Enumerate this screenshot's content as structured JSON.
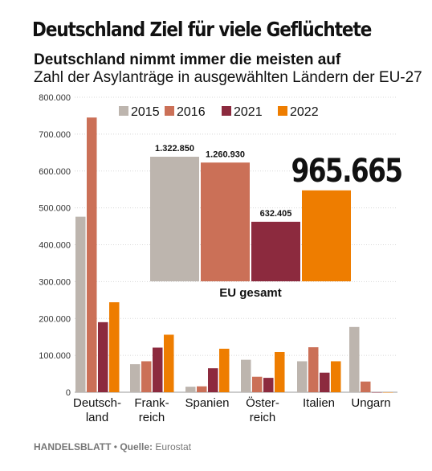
{
  "header": {
    "title": "Deutschland Ziel für viele Geflüchtete",
    "subtitle_bold": "Deutschland nimmt immer die meisten auf",
    "subtitle": "Zahl der Asylanträge in ausgewählten Ländern der EU-27"
  },
  "footer": {
    "publisher": "HANDELSBLATT",
    "separator": " • ",
    "source_label": "Quelle:",
    "source": " Eurostat"
  },
  "colors": {
    "2015": "#bdb5ae",
    "2016": "#cb7057",
    "2021": "#8c2a3e",
    "2022": "#ee7d00",
    "grid": "#d8d8d8",
    "text": "#111111"
  },
  "chart_data": [
    {
      "type": "bar",
      "categories": [
        "Deutsch-\nland",
        "Frank-\nreich",
        "Spanien",
        "Öster-\nreich",
        "Italien",
        "Ungarn"
      ],
      "y_tick_labels": [
        "0",
        "100.000",
        "200.000",
        "300.000",
        "400.000",
        "500.000",
        "600.000",
        "700.000",
        "800.000"
      ],
      "ylim": [
        0,
        800000
      ],
      "grid": true,
      "legend_position": "top",
      "series": [
        {
          "name": "2015",
          "values": [
            476000,
            76000,
            15000,
            88000,
            84000,
            177000
          ]
        },
        {
          "name": "2016",
          "values": [
            745000,
            84000,
            16000,
            42000,
            122000,
            29000
          ]
        },
        {
          "name": "2021",
          "values": [
            190000,
            121000,
            65000,
            39000,
            53000,
            100
          ]
        },
        {
          "name": "2022",
          "values": [
            244000,
            156000,
            118000,
            109000,
            84000,
            50
          ]
        }
      ]
    },
    {
      "type": "bar",
      "title": "EU gesamt",
      "categories": [
        "2015",
        "2016",
        "2021",
        "2022"
      ],
      "values": [
        1322850,
        1260930,
        632405,
        965665
      ],
      "value_labels": [
        "1.322.850",
        "1.260.930",
        "632.405",
        "965.665"
      ],
      "highlight_index": 3
    }
  ]
}
